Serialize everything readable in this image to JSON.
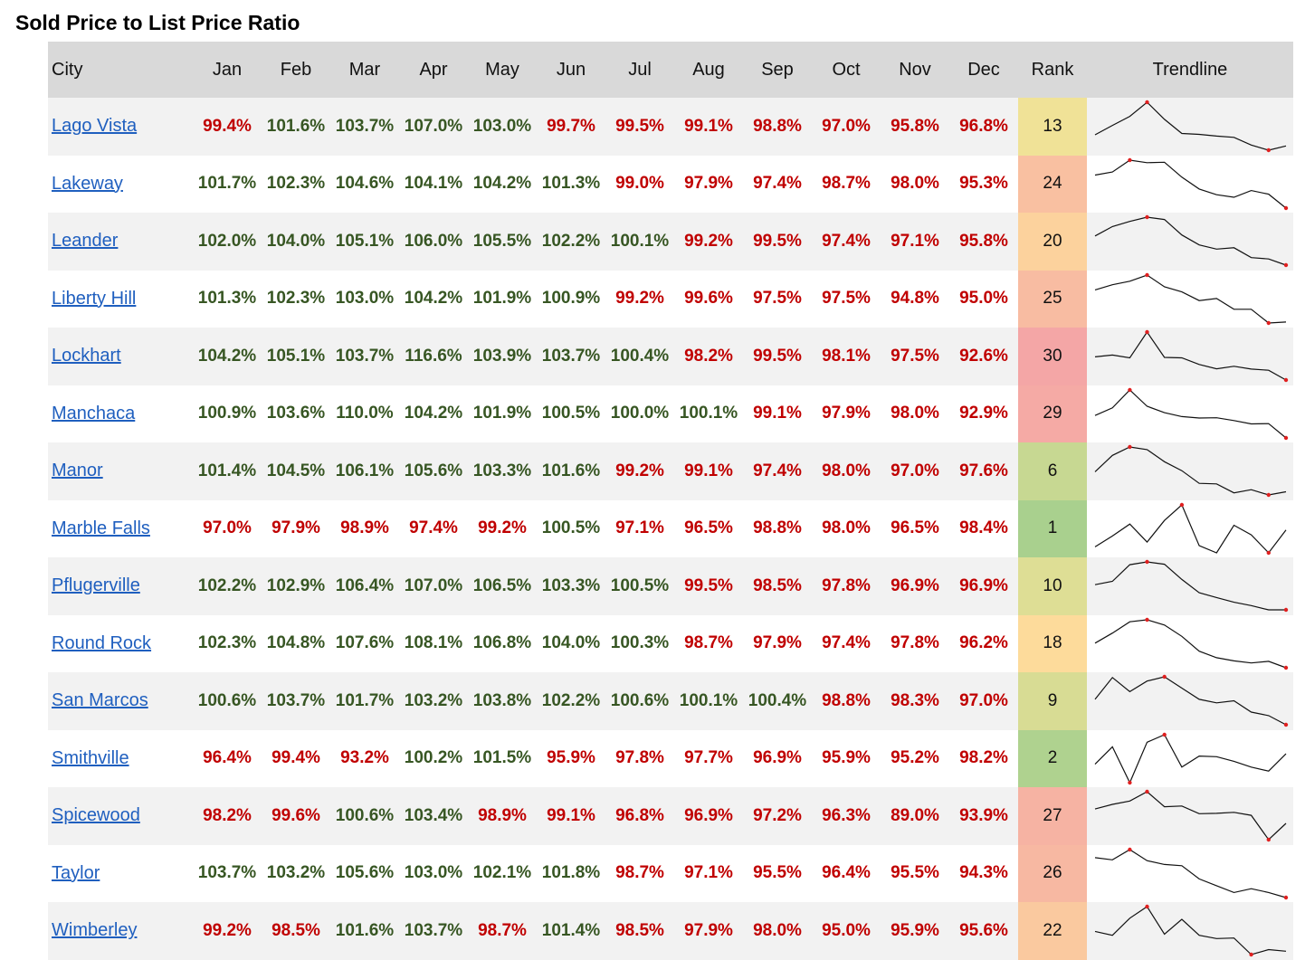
{
  "title": "Sold Price to List Price Ratio",
  "headers": {
    "city": "City",
    "months": [
      "Jan",
      "Feb",
      "Mar",
      "Apr",
      "May",
      "Jun",
      "Jul",
      "Aug",
      "Sep",
      "Oct",
      "Nov",
      "Dec"
    ],
    "rank": "Rank",
    "trendline": "Trendline"
  },
  "colors": {
    "above_100": "#375623",
    "below_100": "#c00000",
    "link": "#1f5fbf",
    "header_bg": "#d9d9d9",
    "alt_row_bg": "#f2f2f2",
    "rank_scale": [
      "#a9d08e",
      "#ffe699",
      "#f4a6a6"
    ]
  },
  "chart_data": {
    "type": "table",
    "title": "Sold Price to List Price Ratio",
    "columns": [
      "City",
      "Jan",
      "Feb",
      "Mar",
      "Apr",
      "May",
      "Jun",
      "Jul",
      "Aug",
      "Sep",
      "Oct",
      "Nov",
      "Dec",
      "Rank",
      "Trendline"
    ],
    "rows": [
      {
        "city": "Lago Vista",
        "values": [
          "99.4%",
          "101.6%",
          "103.7%",
          "107.0%",
          "103.0%",
          "99.7%",
          "99.5%",
          "99.1%",
          "98.8%",
          "97.0%",
          "95.8%",
          "96.8%"
        ],
        "rank": "13"
      },
      {
        "city": "Lakeway",
        "values": [
          "101.7%",
          "102.3%",
          "104.6%",
          "104.1%",
          "104.2%",
          "101.3%",
          "99.0%",
          "97.9%",
          "97.4%",
          "98.7%",
          "98.0%",
          "95.3%"
        ],
        "rank": "24"
      },
      {
        "city": "Leander",
        "values": [
          "102.0%",
          "104.0%",
          "105.1%",
          "106.0%",
          "105.5%",
          "102.2%",
          "100.1%",
          "99.2%",
          "99.5%",
          "97.4%",
          "97.1%",
          "95.8%"
        ],
        "rank": "20"
      },
      {
        "city": "Liberty Hill",
        "values": [
          "101.3%",
          "102.3%",
          "103.0%",
          "104.2%",
          "101.9%",
          "100.9%",
          "99.2%",
          "99.6%",
          "97.5%",
          "97.5%",
          "94.8%",
          "95.0%"
        ],
        "rank": "25"
      },
      {
        "city": "Lockhart",
        "values": [
          "104.2%",
          "105.1%",
          "103.7%",
          "116.6%",
          "103.9%",
          "103.7%",
          "100.4%",
          "98.2%",
          "99.5%",
          "98.1%",
          "97.5%",
          "92.6%"
        ],
        "rank": "30"
      },
      {
        "city": "Manchaca",
        "values": [
          "100.9%",
          "103.6%",
          "110.0%",
          "104.2%",
          "101.9%",
          "100.5%",
          "100.0%",
          "100.1%",
          "99.1%",
          "97.9%",
          "98.0%",
          "92.9%"
        ],
        "rank": "29"
      },
      {
        "city": "Manor",
        "values": [
          "101.4%",
          "104.5%",
          "106.1%",
          "105.6%",
          "103.3%",
          "101.6%",
          "99.2%",
          "99.1%",
          "97.4%",
          "98.0%",
          "97.0%",
          "97.6%"
        ],
        "rank": "6"
      },
      {
        "city": "Marble Falls",
        "values": [
          "97.0%",
          "97.9%",
          "98.9%",
          "97.4%",
          "99.2%",
          "100.5%",
          "97.1%",
          "96.5%",
          "98.8%",
          "98.0%",
          "96.5%",
          "98.4%"
        ],
        "rank": "1"
      },
      {
        "city": "Pflugerville",
        "values": [
          "102.2%",
          "102.9%",
          "106.4%",
          "107.0%",
          "106.5%",
          "103.3%",
          "100.5%",
          "99.5%",
          "98.5%",
          "97.8%",
          "96.9%",
          "96.9%"
        ],
        "rank": "10"
      },
      {
        "city": "Round Rock",
        "values": [
          "102.3%",
          "104.8%",
          "107.6%",
          "108.1%",
          "106.8%",
          "104.0%",
          "100.3%",
          "98.7%",
          "97.9%",
          "97.4%",
          "97.8%",
          "96.2%"
        ],
        "rank": "18"
      },
      {
        "city": "San Marcos",
        "values": [
          "100.6%",
          "103.7%",
          "101.7%",
          "103.2%",
          "103.8%",
          "102.2%",
          "100.6%",
          "100.1%",
          "100.4%",
          "98.8%",
          "98.3%",
          "97.0%"
        ],
        "rank": "9"
      },
      {
        "city": "Smithville",
        "values": [
          "96.4%",
          "99.4%",
          "93.2%",
          "100.2%",
          "101.5%",
          "95.9%",
          "97.8%",
          "97.7%",
          "96.9%",
          "95.9%",
          "95.2%",
          "98.2%"
        ],
        "rank": "2"
      },
      {
        "city": "Spicewood",
        "values": [
          "98.2%",
          "99.6%",
          "100.6%",
          "103.4%",
          "98.9%",
          "99.1%",
          "96.8%",
          "96.9%",
          "97.2%",
          "96.3%",
          "89.0%",
          "93.9%"
        ],
        "rank": "27"
      },
      {
        "city": "Taylor",
        "values": [
          "103.7%",
          "103.2%",
          "105.6%",
          "103.0%",
          "102.1%",
          "101.8%",
          "98.7%",
          "97.1%",
          "95.5%",
          "96.4%",
          "95.5%",
          "94.3%"
        ],
        "rank": "26"
      },
      {
        "city": "Wimberley",
        "values": [
          "99.2%",
          "98.5%",
          "101.6%",
          "103.7%",
          "98.7%",
          "101.4%",
          "98.5%",
          "97.9%",
          "98.0%",
          "95.0%",
          "95.9%",
          "95.6%"
        ],
        "rank": "22"
      }
    ]
  }
}
